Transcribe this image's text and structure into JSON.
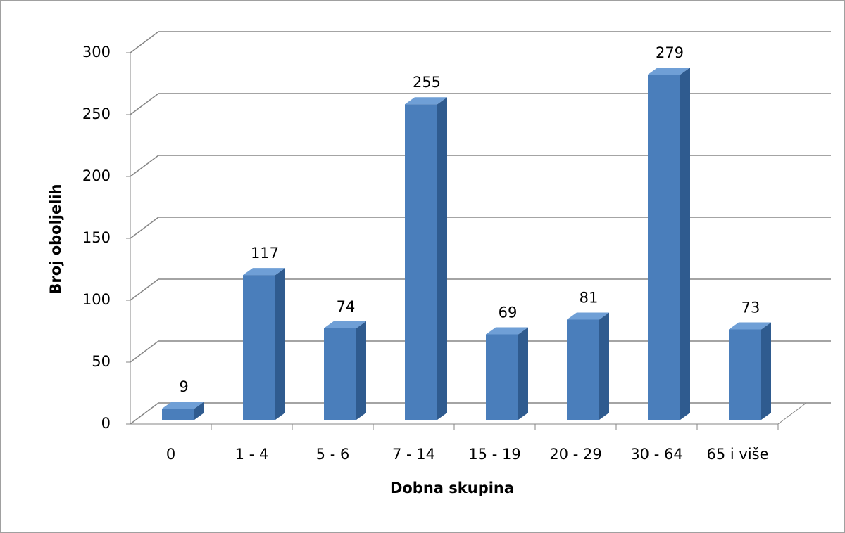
{
  "chart_data": {
    "type": "bar",
    "x_label": "Dobna skupina",
    "y_label": "Broj oboljelih",
    "categories": [
      "0",
      "1 - 4",
      "5 - 6",
      "7 - 14",
      "15 - 19",
      "20 - 29",
      "30 - 64",
      "65 i više"
    ],
    "values": [
      9,
      117,
      74,
      255,
      69,
      81,
      279,
      73
    ],
    "color": "#4a7ebb",
    "ylim": [
      0,
      300
    ],
    "yticks": [
      0,
      50,
      100,
      150,
      200,
      250,
      300
    ],
    "grid": true
  }
}
